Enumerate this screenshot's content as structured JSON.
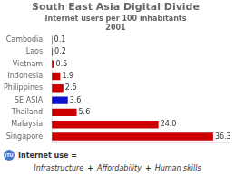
{
  "chart_data": {
    "type": "bar",
    "orientation": "horizontal",
    "title": "South East Asia Digital Divide",
    "subtitle": "Internet users per 100 inhabitants\n2001",
    "categories": [
      "Cambodia",
      "Laos",
      "Vietnam",
      "Indonesia",
      "Philippines",
      "SE ASIA",
      "Thailand",
      "Malaysia",
      "Singapore"
    ],
    "values": [
      0.1,
      0.2,
      0.5,
      1.9,
      2.6,
      3.6,
      5.6,
      24.0,
      36.3
    ],
    "value_labels": [
      "0.1",
      "0.2",
      "0.5",
      "1.9",
      "2.6",
      "3.6",
      "5.6",
      "24.0",
      "36.3"
    ],
    "colors": [
      "#cc0000",
      "#cc0000",
      "#cc0000",
      "#cc0000",
      "#cc0000",
      "#1111cc",
      "#cc0000",
      "#cc0000",
      "#cc0000"
    ],
    "xlim": [
      0,
      40
    ],
    "grid": false,
    "data_labels": true,
    "tick_labels": "y",
    "annotations": [
      "ITU",
      "Internet use =",
      "Infrastructure",
      "+",
      "Affordability",
      "+",
      "Human skills"
    ]
  }
}
